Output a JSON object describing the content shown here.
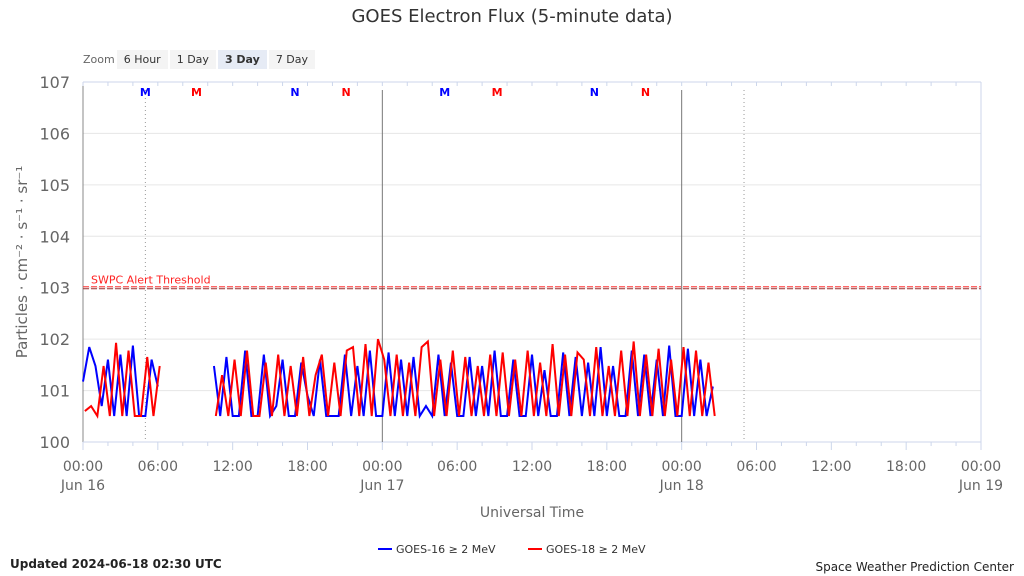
{
  "chart_data": {
    "type": "line",
    "title": "GOES Electron Flux (5-minute data)",
    "xlabel": "Universal Time",
    "ylabel": "Particles · cm⁻² · s⁻¹ · sr⁻¹",
    "yscale": "log",
    "ylim": [
      1,
      10000000
    ],
    "ytick_labels": [
      "100",
      "101",
      "102",
      "103",
      "104",
      "105",
      "106",
      "107"
    ],
    "xlim_hours": [
      0,
      72
    ],
    "xtick_labels": [
      [
        "00:00",
        "Jun 16"
      ],
      [
        "06:00",
        ""
      ],
      [
        "12:00",
        ""
      ],
      [
        "18:00",
        ""
      ],
      [
        "00:00",
        "Jun 17"
      ],
      [
        "06:00",
        ""
      ],
      [
        "12:00",
        ""
      ],
      [
        "18:00",
        ""
      ],
      [
        "00:00",
        "Jun 18"
      ],
      [
        "06:00",
        ""
      ],
      [
        "12:00",
        ""
      ],
      [
        "18:00",
        ""
      ],
      [
        "00:00",
        "Jun 19"
      ]
    ],
    "threshold": {
      "label": "SWPC Alert Threshold",
      "value": 1000
    },
    "markers": [
      {
        "t": 5,
        "label": "M",
        "color": "#0000ff"
      },
      {
        "t": 9.1,
        "label": "M",
        "color": "#ff0000"
      },
      {
        "t": 17,
        "label": "N",
        "color": "#0000ff"
      },
      {
        "t": 21.1,
        "label": "N",
        "color": "#ff0000"
      },
      {
        "t": 29,
        "label": "M",
        "color": "#0000ff"
      },
      {
        "t": 33.2,
        "label": "M",
        "color": "#ff0000"
      },
      {
        "t": 41,
        "label": "N",
        "color": "#0000ff"
      },
      {
        "t": 45.1,
        "label": "N",
        "color": "#ff0000"
      }
    ],
    "series": [
      {
        "name": "GOES-16 ≥ 2 MeV",
        "color": "#0000ff",
        "segments": [
          {
            "start": 0,
            "step": 0.5,
            "values": [
              15,
              70,
              30,
              5,
              40,
              3.2,
              50,
              3.2,
              75,
              3.2,
              3.2,
              40,
              12
            ]
          },
          {
            "start": 10.5,
            "step": 0.5,
            "values": [
              30,
              3.2,
              45,
              3.2,
              3.2,
              60,
              3.2,
              3.2,
              50,
              3.2,
              5,
              40,
              3.2,
              3.2,
              35,
              8,
              3.2,
              40,
              3.2,
              3.2,
              3.2,
              50,
              3.2,
              30,
              3.2,
              60,
              3.2,
              3.2,
              55,
              3.2,
              40,
              3.2,
              45,
              3.2,
              5,
              3.2,
              50,
              3.2,
              35,
              3.2,
              3.2,
              45,
              3.2,
              30,
              3.2,
              60,
              3.2,
              3.2,
              40,
              3.2,
              3.2,
              50,
              3.2,
              25,
              3.2,
              3.2,
              55,
              3.2,
              45,
              3.2,
              35,
              3.2,
              70,
              3.2,
              30,
              3.2,
              3.2,
              60,
              3.2,
              50,
              3.2,
              40,
              3.2,
              75,
              3.2,
              3.2,
              65,
              3.2,
              40,
              3.2,
              12
            ]
          }
        ]
      },
      {
        "name": "GOES-18 ≥ 2 MeV",
        "color": "#ff0000",
        "segments": [
          {
            "start": 0,
            "step": 0.5,
            "values": [
              4,
              5,
              3.2,
              30,
              3.2,
              85,
              3.2,
              60,
              3.2,
              3.2,
              45,
              3.2,
              30
            ]
          },
          {
            "start": 10.5,
            "step": 0.5,
            "values": [
              3.2,
              20,
              3.2,
              40,
              3.2,
              60,
              3.2,
              3.2,
              35,
              3.2,
              50,
              3.2,
              30,
              3.2,
              45,
              3.2,
              20,
              50,
              3.2,
              35,
              3.2,
              60,
              70,
              3.2,
              80,
              3.2,
              100,
              40,
              3.2,
              50,
              3.2,
              35,
              3.2,
              70,
              90,
              3.2,
              40,
              3.2,
              60,
              3.2,
              45,
              3.2,
              30,
              3.2,
              50,
              3.2,
              55,
              3.2,
              40,
              3.2,
              60,
              3.2,
              35,
              3.2,
              80,
              3.2,
              50,
              3.2,
              55,
              40,
              3.2,
              70,
              3.2,
              30,
              3.2,
              60,
              3.2,
              90,
              3.2,
              50,
              3.2,
              65,
              3.2,
              40,
              3.2,
              70,
              3.2,
              60,
              3.2,
              35,
              3.2
            ]
          }
        ]
      }
    ],
    "legend_position": "bottom-center"
  },
  "zoom": {
    "label": "Zoom",
    "buttons": [
      "6 Hour",
      "1 Day",
      "3 Day",
      "7 Day"
    ],
    "selected": "3 Day"
  },
  "footer": {
    "updated": "Updated 2024-06-18 02:30 UTC",
    "credit": "Space Weather Prediction Center"
  }
}
